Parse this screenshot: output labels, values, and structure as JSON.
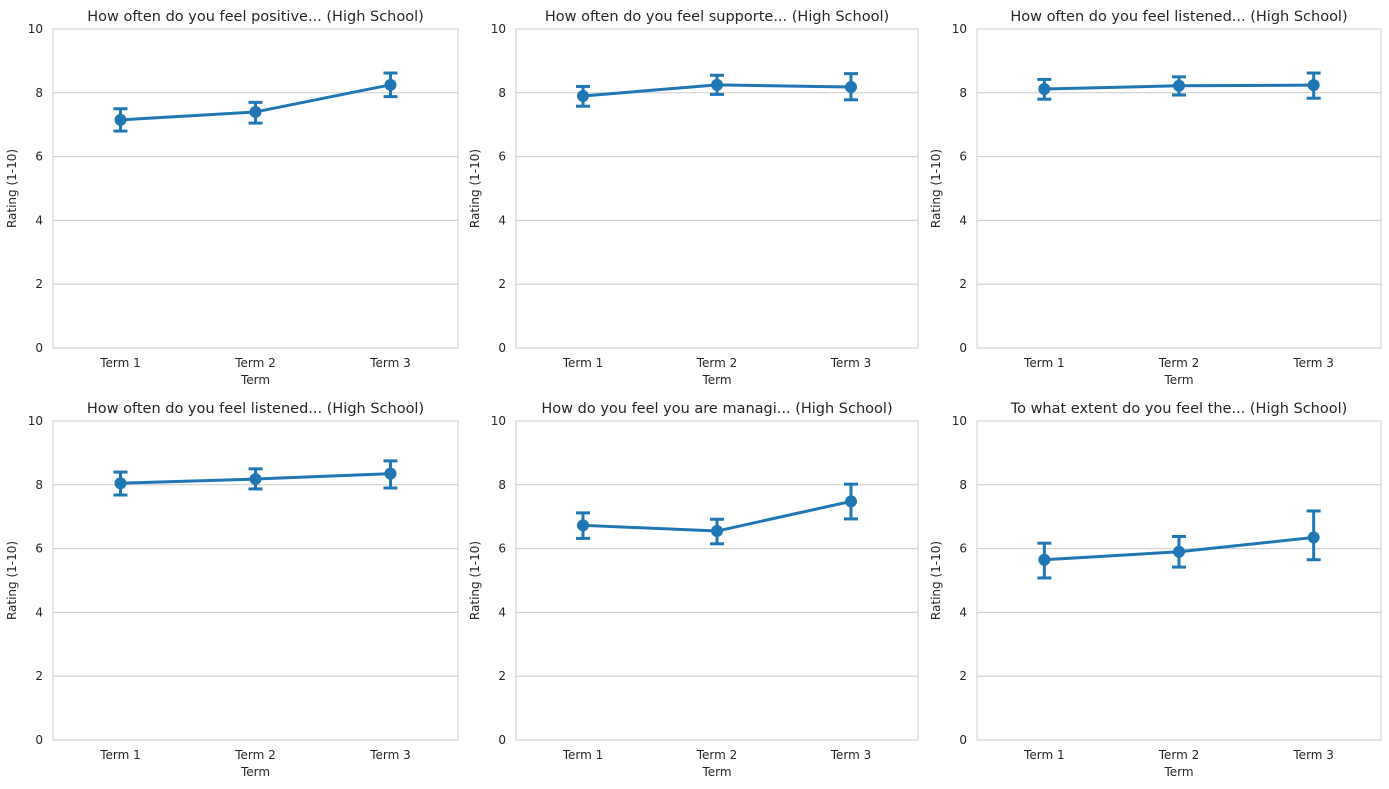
{
  "colors": {
    "series": "#1f77b4",
    "grid": "#cccccc",
    "text": "#262626"
  },
  "chart_data": [
    {
      "type": "line",
      "title": "How often do you feel positive... (High School)",
      "xlabel": "Term",
      "ylabel": "Rating (1-10)",
      "categories": [
        "Term 1",
        "Term 2",
        "Term 3"
      ],
      "values": [
        7.15,
        7.4,
        8.25
      ],
      "ci_low": [
        6.8,
        7.05,
        7.88
      ],
      "ci_high": [
        7.5,
        7.7,
        8.62
      ],
      "ylim": [
        0,
        10
      ],
      "yticks": [
        "0",
        "2",
        "4",
        "6",
        "8",
        "10"
      ],
      "grid": "horizontal",
      "has_xlabel": true
    },
    {
      "type": "line",
      "title": "How often do you feel supporte... (High School)",
      "xlabel": "Term",
      "ylabel": "Rating (1-10)",
      "categories": [
        "Term 1",
        "Term 2",
        "Term 3"
      ],
      "values": [
        7.9,
        8.25,
        8.18
      ],
      "ci_low": [
        7.58,
        7.95,
        7.78
      ],
      "ci_high": [
        8.2,
        8.55,
        8.6
      ],
      "ylim": [
        0,
        10
      ],
      "yticks": [
        "0",
        "2",
        "4",
        "6",
        "8",
        "10"
      ],
      "grid": "horizontal",
      "has_xlabel": true
    },
    {
      "type": "line",
      "title": "How often do you feel listened... (High School)",
      "xlabel": "Term",
      "ylabel": "Rating (1-10)",
      "categories": [
        "Term 1",
        "Term 2",
        "Term 3"
      ],
      "values": [
        8.12,
        8.22,
        8.24
      ],
      "ci_low": [
        7.8,
        7.93,
        7.83
      ],
      "ci_high": [
        8.42,
        8.5,
        8.62
      ],
      "ylim": [
        0,
        10
      ],
      "yticks": [
        "0",
        "2",
        "4",
        "6",
        "8",
        "10"
      ],
      "grid": "horizontal",
      "has_xlabel": true
    },
    {
      "type": "line",
      "title": "How often do you feel listened... (High School)",
      "xlabel": "",
      "ylabel": "Rating (1-10)",
      "categories": [
        "Term 1",
        "Term 2",
        "Term 3"
      ],
      "values": [
        8.05,
        8.18,
        8.35
      ],
      "ci_low": [
        7.68,
        7.87,
        7.9
      ],
      "ci_high": [
        8.4,
        8.5,
        8.75
      ],
      "ylim": [
        0,
        10
      ],
      "yticks": [
        "0",
        "2",
        "4",
        "6",
        "8",
        "10"
      ],
      "grid": "horizontal",
      "has_xlabel": true,
      "xlabel_text": "Term"
    },
    {
      "type": "line",
      "title": "How do you feel you are managi... (High School)",
      "xlabel": "",
      "ylabel": "Rating (1-10)",
      "categories": [
        "Term 1",
        "Term 2",
        "Term 3"
      ],
      "values": [
        6.73,
        6.55,
        7.48
      ],
      "ci_low": [
        6.32,
        6.15,
        6.93
      ],
      "ci_high": [
        7.12,
        6.92,
        8.02
      ],
      "ylim": [
        0,
        10
      ],
      "yticks": [
        "0",
        "2",
        "4",
        "6",
        "8",
        "10"
      ],
      "grid": "horizontal",
      "has_xlabel": true,
      "xlabel_text": "Term"
    },
    {
      "type": "line",
      "title": "To what extent do you feel the... (High School)",
      "xlabel": "",
      "ylabel": "Rating (1-10)",
      "categories": [
        "Term 1",
        "Term 2",
        "Term 3"
      ],
      "values": [
        5.65,
        5.9,
        6.35
      ],
      "ci_low": [
        5.08,
        5.42,
        5.65
      ],
      "ci_high": [
        6.17,
        6.38,
        7.18
      ],
      "ylim": [
        0,
        10
      ],
      "yticks": [
        "0",
        "2",
        "4",
        "6",
        "8",
        "10"
      ],
      "grid": "horizontal",
      "has_xlabel": true,
      "xlabel_text": "Term"
    }
  ]
}
